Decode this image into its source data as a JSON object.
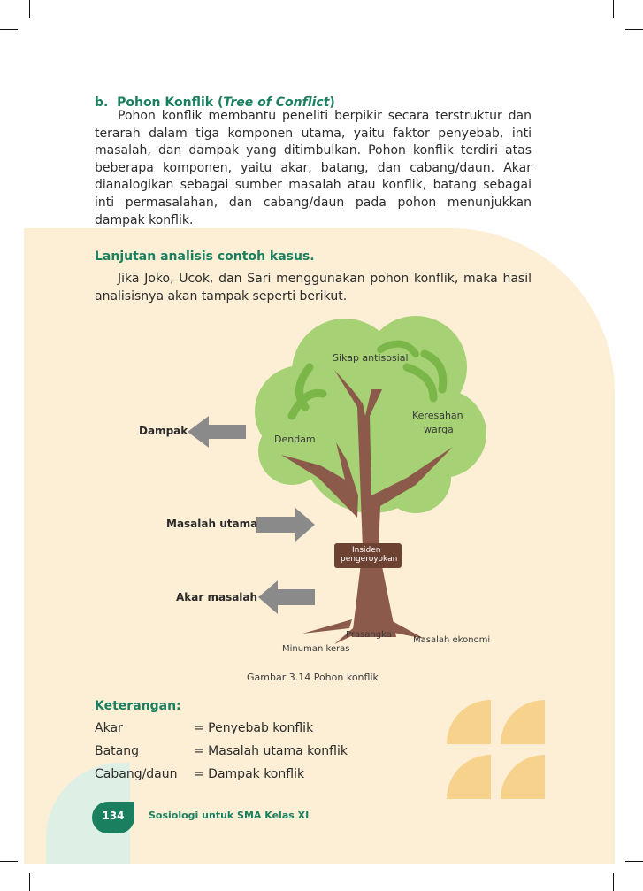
{
  "section": {
    "letter": "b.",
    "title_main": "Pohon Konflik (",
    "title_italic": "Tree of Conflict",
    "title_end": ")",
    "paragraph": "Pohon konflik membantu peneliti berpikir secara terstruktur dan terarah dalam tiga komponen utama, yaitu faktor penyebab, inti masalah, dan dampak yang ditimbulkan. Pohon konflik terdiri atas beberapa komponen, yaitu akar, batang, dan cabang/daun. Akar dianalogikan sebagai sumber masalah atau konflik, batang sebagai inti permasalahan, dan cabang/daun pada pohon menunjukkan dampak konflik."
  },
  "case": {
    "heading": "Lanjutan analisis contoh kasus.",
    "paragraph": "Jika Joko, Ucok, dan Sari menggunakan pohon konflik, maka hasil analisisnya akan tampak seperti berikut."
  },
  "figure": {
    "arrows": {
      "impact": "Dampak",
      "core": "Masalah utama",
      "root": "Akar masalah"
    },
    "leaves": {
      "sikap": "Sikap antisosial",
      "keresahan_1": "Keresahan",
      "keresahan_2": "warga",
      "dendam": "Dendam"
    },
    "trunk": {
      "label_1": "Insiden",
      "label_2": "pengeroyokan"
    },
    "roots": {
      "prasangka": "Prasangka",
      "ekonomi": "Masalah ekonomi",
      "minuman": "Minuman keras"
    },
    "caption": "Gambar 3.14 Pohon konflik",
    "colors": {
      "leaf_light": "#a6d175",
      "leaf_dark": "#7ab648",
      "trunk": "#8c5a4a",
      "arrow": "#8a8a8a"
    }
  },
  "legend": {
    "heading": "Keterangan:",
    "rows": [
      {
        "term": "Akar",
        "def": "= Penyebab konflik"
      },
      {
        "term": "Batang",
        "def": "= Masalah utama konflik"
      },
      {
        "term": "Cabang/daun",
        "def": "= Dampak konflik"
      }
    ]
  },
  "footer": {
    "page_number": "134",
    "book_title": "Sosiologi untuk SMA Kelas XI"
  }
}
